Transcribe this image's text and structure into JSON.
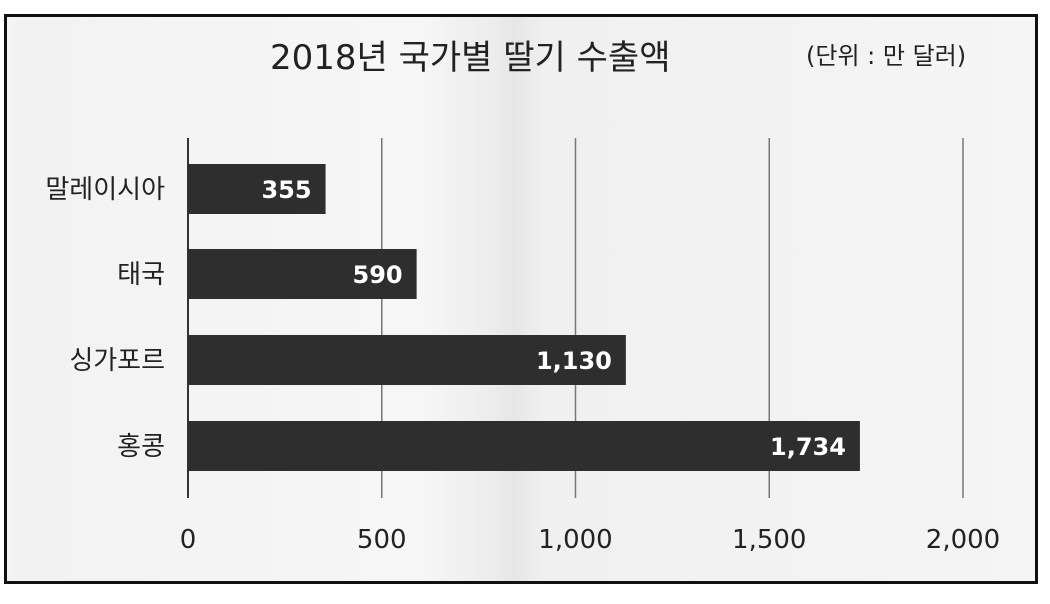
{
  "chart_data": {
    "type": "bar",
    "orientation": "horizontal",
    "title": "2018년 국가별 딸기 수출액",
    "unit": "(단위 : 만 달러)",
    "categories": [
      "말레이시아",
      "태국",
      "싱가포르",
      "홍콩"
    ],
    "values": [
      355,
      590,
      1130,
      1734
    ],
    "value_labels": [
      "355",
      "590",
      "1,130",
      "1,734"
    ],
    "xlim": [
      0,
      2000
    ],
    "xticks": [
      0,
      500,
      1000,
      1500,
      2000
    ],
    "xtick_labels": [
      "0",
      "500",
      "1,000",
      "1,500",
      "2,000"
    ],
    "grid": "vertical",
    "bar_color": "#2e2e2e",
    "label_color": "#ffffff"
  }
}
